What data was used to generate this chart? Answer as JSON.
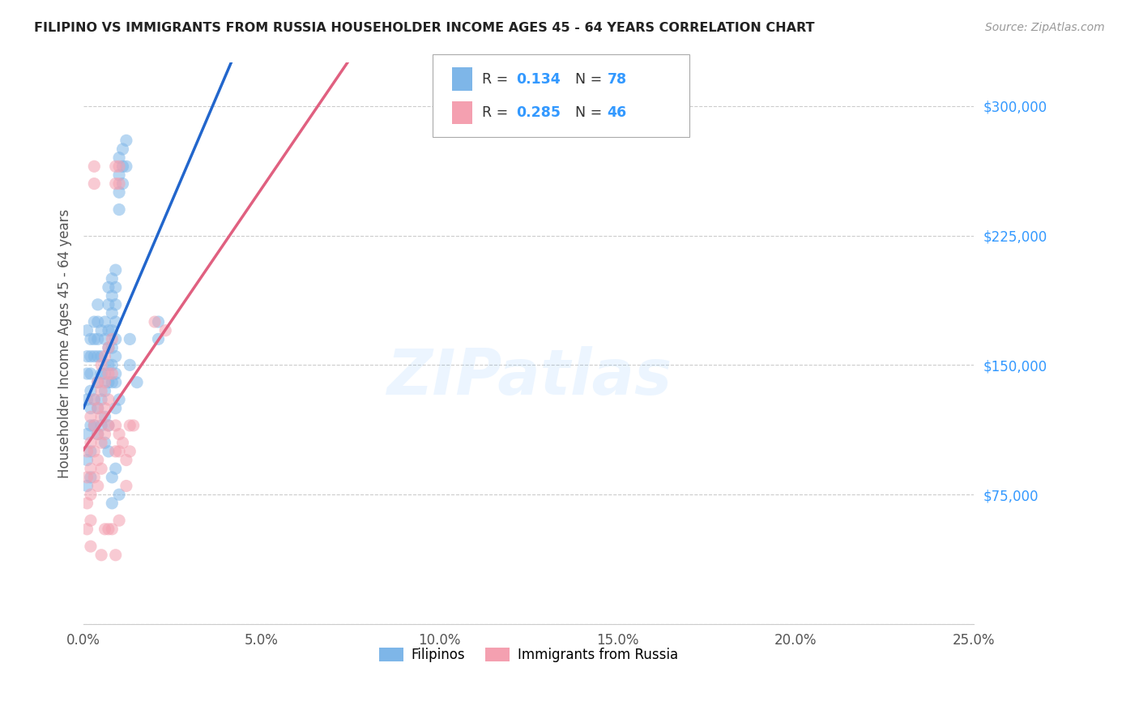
{
  "title": "FILIPINO VS IMMIGRANTS FROM RUSSIA HOUSEHOLDER INCOME AGES 45 - 64 YEARS CORRELATION CHART",
  "source": "Source: ZipAtlas.com",
  "ylabel": "Householder Income Ages 45 - 64 years",
  "xlim": [
    0.0,
    0.25
  ],
  "ylim": [
    0,
    325000
  ],
  "yticks": [
    0,
    75000,
    150000,
    225000,
    300000
  ],
  "ytick_labels": [
    "",
    "$75,000",
    "$150,000",
    "$225,000",
    "$300,000"
  ],
  "xtick_labels": [
    "0.0%",
    "5.0%",
    "10.0%",
    "15.0%",
    "20.0%",
    "25.0%"
  ],
  "xticks": [
    0.0,
    0.05,
    0.1,
    0.15,
    0.2,
    0.25
  ],
  "filipino_color": "#7EB6E8",
  "russia_color": "#F4A0B0",
  "filipino_line_color": "#2266CC",
  "russia_line_color": "#E06080",
  "watermark": "ZIPatlas",
  "background_color": "#FFFFFF",
  "grid_color": "#CCCCCC",
  "filipino_scatter": [
    [
      0.005,
      170000
    ],
    [
      0.005,
      155000
    ],
    [
      0.005,
      145000
    ],
    [
      0.006,
      175000
    ],
    [
      0.006,
      165000
    ],
    [
      0.006,
      145000
    ],
    [
      0.006,
      135000
    ],
    [
      0.007,
      195000
    ],
    [
      0.007,
      185000
    ],
    [
      0.007,
      170000
    ],
    [
      0.007,
      160000
    ],
    [
      0.007,
      150000
    ],
    [
      0.007,
      140000
    ],
    [
      0.008,
      200000
    ],
    [
      0.008,
      190000
    ],
    [
      0.008,
      180000
    ],
    [
      0.008,
      170000
    ],
    [
      0.008,
      160000
    ],
    [
      0.008,
      150000
    ],
    [
      0.008,
      140000
    ],
    [
      0.009,
      205000
    ],
    [
      0.009,
      195000
    ],
    [
      0.009,
      185000
    ],
    [
      0.009,
      175000
    ],
    [
      0.009,
      165000
    ],
    [
      0.009,
      155000
    ],
    [
      0.009,
      145000
    ],
    [
      0.01,
      270000
    ],
    [
      0.01,
      260000
    ],
    [
      0.01,
      250000
    ],
    [
      0.01,
      240000
    ],
    [
      0.011,
      275000
    ],
    [
      0.011,
      265000
    ],
    [
      0.011,
      255000
    ],
    [
      0.012,
      280000
    ],
    [
      0.012,
      265000
    ],
    [
      0.002,
      165000
    ],
    [
      0.002,
      155000
    ],
    [
      0.002,
      145000
    ],
    [
      0.002,
      135000
    ],
    [
      0.003,
      175000
    ],
    [
      0.003,
      165000
    ],
    [
      0.003,
      155000
    ],
    [
      0.004,
      185000
    ],
    [
      0.004,
      175000
    ],
    [
      0.004,
      165000
    ],
    [
      0.004,
      155000
    ],
    [
      0.001,
      170000
    ],
    [
      0.001,
      155000
    ],
    [
      0.001,
      145000
    ],
    [
      0.001,
      130000
    ],
    [
      0.001,
      110000
    ],
    [
      0.001,
      95000
    ],
    [
      0.001,
      80000
    ],
    [
      0.002,
      125000
    ],
    [
      0.002,
      115000
    ],
    [
      0.002,
      100000
    ],
    [
      0.002,
      85000
    ],
    [
      0.003,
      130000
    ],
    [
      0.003,
      115000
    ],
    [
      0.004,
      140000
    ],
    [
      0.004,
      125000
    ],
    [
      0.004,
      110000
    ],
    [
      0.005,
      130000
    ],
    [
      0.005,
      115000
    ],
    [
      0.006,
      120000
    ],
    [
      0.006,
      105000
    ],
    [
      0.007,
      115000
    ],
    [
      0.007,
      100000
    ],
    [
      0.009,
      140000
    ],
    [
      0.009,
      125000
    ],
    [
      0.01,
      130000
    ],
    [
      0.013,
      165000
    ],
    [
      0.013,
      150000
    ],
    [
      0.021,
      175000
    ],
    [
      0.021,
      165000
    ],
    [
      0.008,
      85000
    ],
    [
      0.008,
      70000
    ],
    [
      0.009,
      90000
    ],
    [
      0.01,
      75000
    ],
    [
      0.015,
      140000
    ]
  ],
  "russia_scatter": [
    [
      0.001,
      100000
    ],
    [
      0.001,
      85000
    ],
    [
      0.001,
      70000
    ],
    [
      0.001,
      55000
    ],
    [
      0.002,
      120000
    ],
    [
      0.002,
      105000
    ],
    [
      0.002,
      90000
    ],
    [
      0.002,
      75000
    ],
    [
      0.002,
      60000
    ],
    [
      0.002,
      45000
    ],
    [
      0.003,
      130000
    ],
    [
      0.003,
      115000
    ],
    [
      0.003,
      100000
    ],
    [
      0.003,
      85000
    ],
    [
      0.003,
      265000
    ],
    [
      0.003,
      255000
    ],
    [
      0.004,
      140000
    ],
    [
      0.004,
      125000
    ],
    [
      0.004,
      110000
    ],
    [
      0.004,
      95000
    ],
    [
      0.004,
      80000
    ],
    [
      0.005,
      150000
    ],
    [
      0.005,
      135000
    ],
    [
      0.005,
      120000
    ],
    [
      0.005,
      105000
    ],
    [
      0.005,
      90000
    ],
    [
      0.006,
      155000
    ],
    [
      0.006,
      140000
    ],
    [
      0.006,
      125000
    ],
    [
      0.006,
      110000
    ],
    [
      0.007,
      160000
    ],
    [
      0.007,
      145000
    ],
    [
      0.007,
      130000
    ],
    [
      0.007,
      115000
    ],
    [
      0.008,
      165000
    ],
    [
      0.008,
      145000
    ],
    [
      0.009,
      265000
    ],
    [
      0.009,
      255000
    ],
    [
      0.01,
      265000
    ],
    [
      0.01,
      255000
    ],
    [
      0.009,
      115000
    ],
    [
      0.009,
      100000
    ],
    [
      0.01,
      110000
    ],
    [
      0.01,
      100000
    ],
    [
      0.006,
      55000
    ],
    [
      0.007,
      55000
    ],
    [
      0.008,
      55000
    ],
    [
      0.009,
      40000
    ],
    [
      0.005,
      40000
    ],
    [
      0.011,
      105000
    ],
    [
      0.012,
      95000
    ],
    [
      0.012,
      80000
    ],
    [
      0.013,
      115000
    ],
    [
      0.013,
      100000
    ],
    [
      0.014,
      115000
    ],
    [
      0.02,
      175000
    ],
    [
      0.023,
      170000
    ],
    [
      0.01,
      60000
    ]
  ]
}
